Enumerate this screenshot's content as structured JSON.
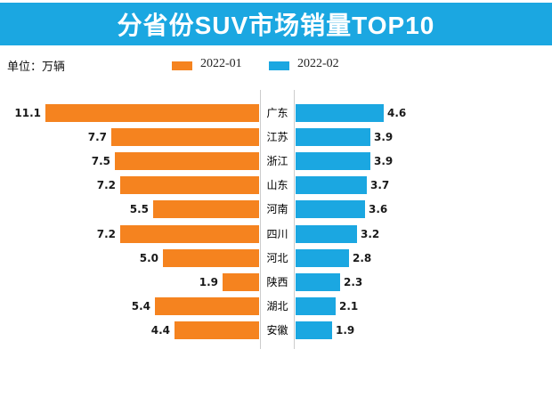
{
  "header": {
    "title": "分省份SUV市场销量TOP10",
    "background_color": "#1ba7e1",
    "text_color": "#ffffff"
  },
  "unit_label": "单位：万辆",
  "legend": [
    {
      "label": "2022-01",
      "color": "#f5831f"
    },
    {
      "label": "2022-02",
      "color": "#1ba7e1"
    }
  ],
  "colors": {
    "left_bar": "#f5831f",
    "right_bar": "#1ba7e1",
    "axis_line": "#cccccc"
  },
  "chart_data": {
    "type": "bar",
    "subtype": "diverging-horizontal-tornado",
    "title": "分省份SUV市场销量TOP10",
    "unit": "万辆",
    "categories": [
      "广东",
      "江苏",
      "浙江",
      "山东",
      "河南",
      "四川",
      "河北",
      "陕西",
      "湖北",
      "安徽"
    ],
    "series": [
      {
        "name": "2022-01",
        "side": "left",
        "color": "#f5831f",
        "values": [
          11.1,
          7.7,
          7.5,
          7.2,
          5.5,
          7.2,
          5.0,
          1.9,
          5.4,
          4.4
        ]
      },
      {
        "name": "2022-02",
        "side": "right",
        "color": "#1ba7e1",
        "values": [
          4.6,
          3.9,
          3.9,
          3.7,
          3.6,
          3.2,
          2.8,
          2.3,
          2.1,
          1.9
        ]
      }
    ],
    "value_labels_shown": true,
    "legend_position": "top",
    "grid": false
  }
}
